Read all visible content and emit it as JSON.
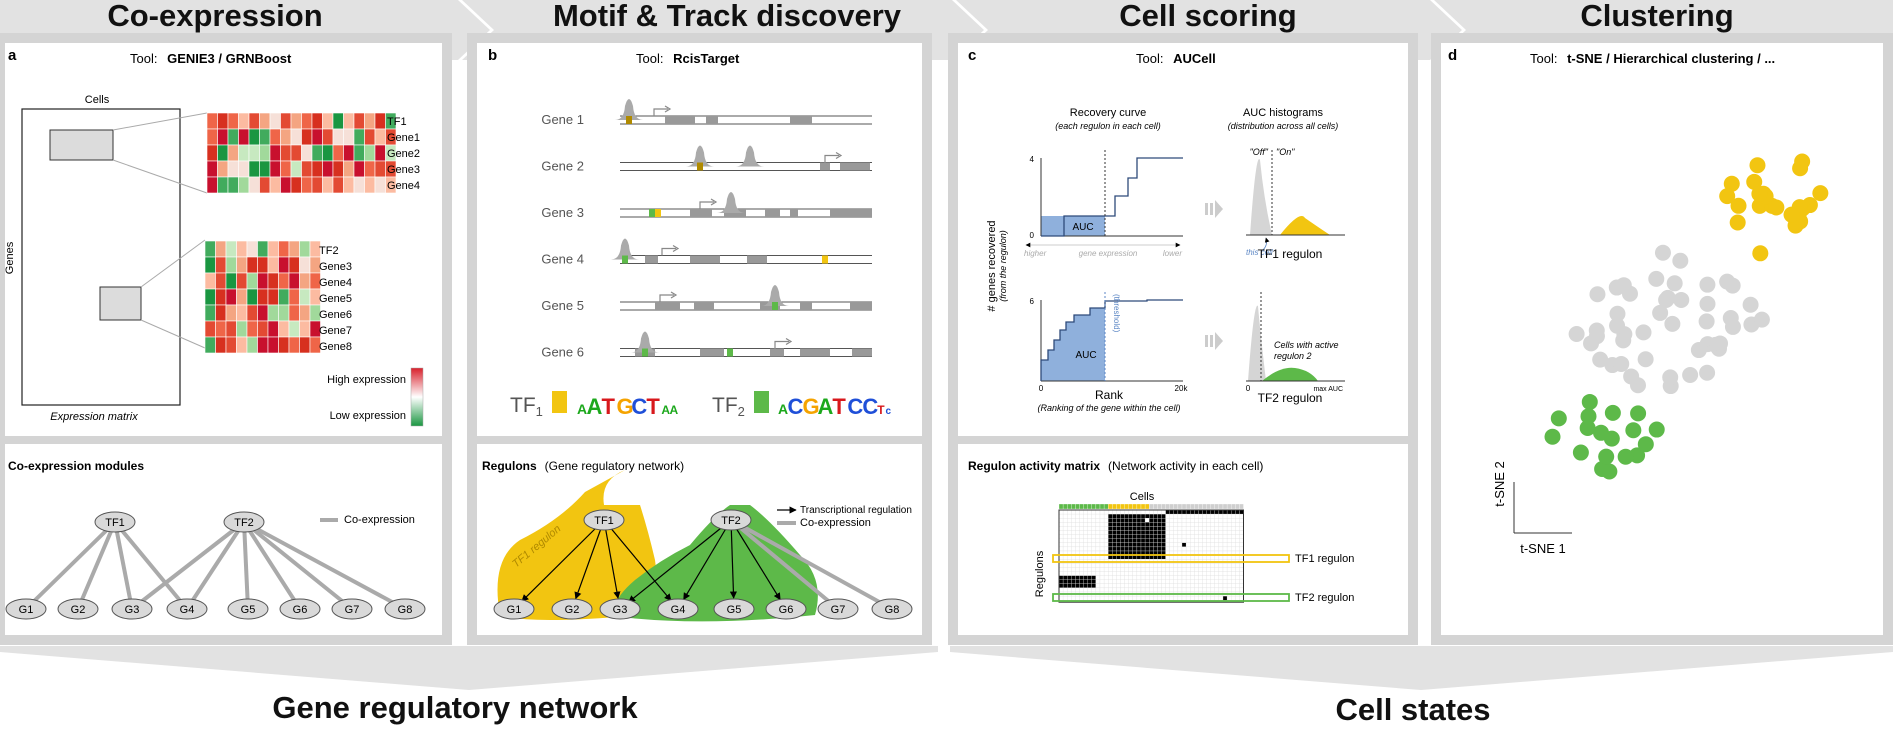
{
  "header": {
    "steps": [
      "Co-expression",
      "Motif & Track discovery",
      "Cell scoring",
      "Clustering"
    ]
  },
  "panels": {
    "a": {
      "letter": "a",
      "tool_label": "Tool:",
      "tool": "GENIE3 / GRNBoost",
      "cells_label": "Cells",
      "genes_label": "Genes",
      "matrix_caption": "Expression matrix",
      "heatmap1_rows": [
        "TF1",
        "Gene1",
        "Gene2",
        "Gene3",
        "Gene4"
      ],
      "heatmap2_rows": [
        "TF2",
        "Gene3",
        "Gene4",
        "Gene5",
        "Gene6",
        "Gene7",
        "Gene8"
      ],
      "legend_high": "High expression",
      "legend_low": "Low expression",
      "modules_title": "Co-expression modules",
      "modules_legend": "Co-expression",
      "tf_nodes": [
        "TF1",
        "TF2"
      ],
      "gene_nodes": [
        "G1",
        "G2",
        "G3",
        "G4",
        "G5",
        "G6",
        "G7",
        "G8"
      ]
    },
    "b": {
      "letter": "b",
      "tool_label": "Tool:",
      "tool": "RcisTarget",
      "genes": [
        "Gene 1",
        "Gene 2",
        "Gene 3",
        "Gene 4",
        "Gene 5",
        "Gene 6"
      ],
      "tf1_label": "TF",
      "tf1_sub": "1",
      "tf2_label": "TF",
      "tf2_sub": "2",
      "motif1": [
        "A",
        "A",
        "T",
        "G",
        "C",
        "T",
        "A",
        "A"
      ],
      "motif2": [
        "A",
        "C",
        "G",
        "A",
        "T",
        "C",
        "C",
        "T",
        "c"
      ],
      "regulons_title": "Regulons",
      "regulons_subtitle": "(Gene regulatory network)",
      "legend_regulation": "Transcriptional regulation",
      "legend_coexpression": "Co-expression",
      "tf1_regulon_label": "TF1 regulon",
      "tf_nodes": [
        "TF1",
        "TF2"
      ],
      "gene_nodes": [
        "G1",
        "G2",
        "G3",
        "G4",
        "G5",
        "G6",
        "G7",
        "G8"
      ]
    },
    "c": {
      "letter": "c",
      "tool_label": "Tool:",
      "tool": "AUCell",
      "recovery_title": "Recovery curve",
      "recovery_subtitle": "(each regulon in each cell)",
      "auc_hist_title": "AUC histograms",
      "auc_hist_subtitle": "(distribution across all cells)",
      "y_axis_label": "# genes recovered",
      "y_axis_sublabel": "(from the regulon)",
      "x_higher": "higher",
      "x_mid": "gene expression",
      "x_lower": "lower",
      "auc_label": "AUC",
      "rank_label": "Rank",
      "rank_sublabel": "(Ranking of the gene within the cell)",
      "tick_4": "4",
      "tick_0a": "0",
      "tick_6": "6",
      "tick_0b": "0",
      "tick_20k": "20k",
      "threshold_label": "(threshold)",
      "off_label": "\"Off\"",
      "on_label": "\"On\"",
      "this_cell": "this cell",
      "tf1_regulon": "TF1 regulon",
      "tf2_regulon": "TF2 regulon",
      "active_label_1": "Cells with active",
      "active_label_2": "regulon 2",
      "max_auc": "max AUC",
      "hist_zero": "0",
      "matrix_title": "Regulon activity matrix",
      "matrix_subtitle": "(Network activity in each cell)",
      "cells_label": "Cells",
      "regulons_label": "Regulons",
      "row1_label": "TF1 regulon",
      "row2_label": "TF2 regulon"
    },
    "d": {
      "letter": "d",
      "tool_label": "Tool:",
      "tool": "t-SNE / Hierarchical clustering / ...",
      "x_axis": "t-SNE 1",
      "y_axis": "t-SNE 2"
    }
  },
  "footer": {
    "left": "Gene regulatory network",
    "right": "Cell states"
  },
  "colors": {
    "yellow": "#f2c511",
    "green": "#5db949",
    "grey_node": "#d9d9d9",
    "auc_blue": "#8fb0dc",
    "arrow_bg": "#e2e2e2"
  }
}
